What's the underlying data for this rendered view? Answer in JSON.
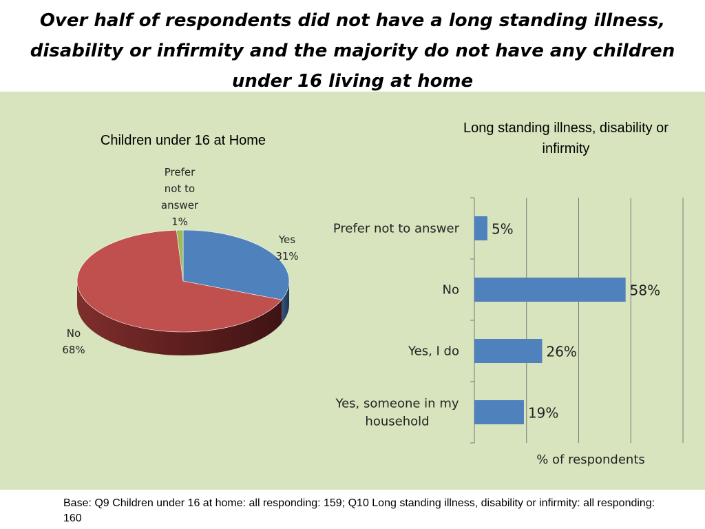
{
  "title": "Over half of respondents did not have a long standing illness, disability or infirmity and the majority do not have any children under 16 living at home",
  "footnote": "Base: Q9 Children under 16 at home: all responding: 159; Q10 Long standing illness, disability or infirmity: all responding: 160",
  "colors": {
    "panel": "#d7e4bd",
    "blue": "#4f81bd",
    "red": "#c0504d",
    "olive": "#9bbb59"
  },
  "chart_data": [
    {
      "type": "pie",
      "title": "Children under 16 at Home",
      "slices": [
        {
          "label": "Yes",
          "value_label": "31%",
          "value": 31,
          "color": "#4f81bd"
        },
        {
          "label": "No",
          "value_label": "68%",
          "value": 68,
          "color": "#c0504d"
        },
        {
          "label": "Prefer not to answer",
          "value_label": "1%",
          "value": 1,
          "color": "#9bbb59"
        }
      ]
    },
    {
      "type": "bar",
      "orientation": "horizontal",
      "title": "Long standing illness, disability or infirmity",
      "xlabel": "% of respondents",
      "categories": [
        "Prefer not to answer",
        "No",
        "Yes, I do",
        "Yes, someone  in my household"
      ],
      "values": [
        5,
        58,
        26,
        19
      ],
      "value_labels": [
        "5%",
        "58%",
        "26%",
        "19%"
      ],
      "xlim": [
        0,
        80
      ],
      "grid": true,
      "color": "#4f81bd"
    }
  ]
}
